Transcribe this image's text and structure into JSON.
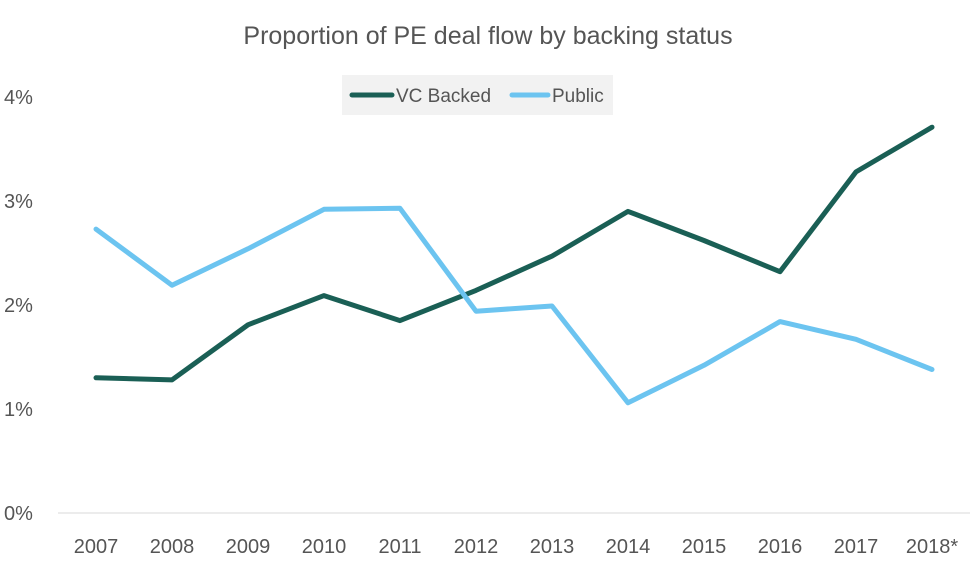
{
  "chart_data": {
    "type": "line",
    "title": "Proportion of PE deal flow by backing status",
    "xlabel": "",
    "ylabel": "",
    "categories": [
      "2007",
      "2008",
      "2009",
      "2010",
      "2011",
      "2012",
      "2013",
      "2014",
      "2015",
      "2016",
      "2017",
      "2018*"
    ],
    "y_ticks": [
      "0%",
      "1%",
      "2%",
      "3%",
      "4%"
    ],
    "ylim": [
      0,
      4
    ],
    "grid": false,
    "legend_position": "top-center",
    "series": [
      {
        "name": "VC Backed",
        "color": "#1a5f55",
        "values": [
          1.3,
          1.28,
          1.81,
          2.09,
          1.85,
          2.14,
          2.47,
          2.9,
          2.62,
          2.32,
          3.28,
          3.71
        ]
      },
      {
        "name": "Public",
        "color": "#6cc4f0",
        "values": [
          2.73,
          2.19,
          2.54,
          2.92,
          2.93,
          1.94,
          1.99,
          1.06,
          1.42,
          1.84,
          1.67,
          1.38
        ]
      }
    ]
  }
}
